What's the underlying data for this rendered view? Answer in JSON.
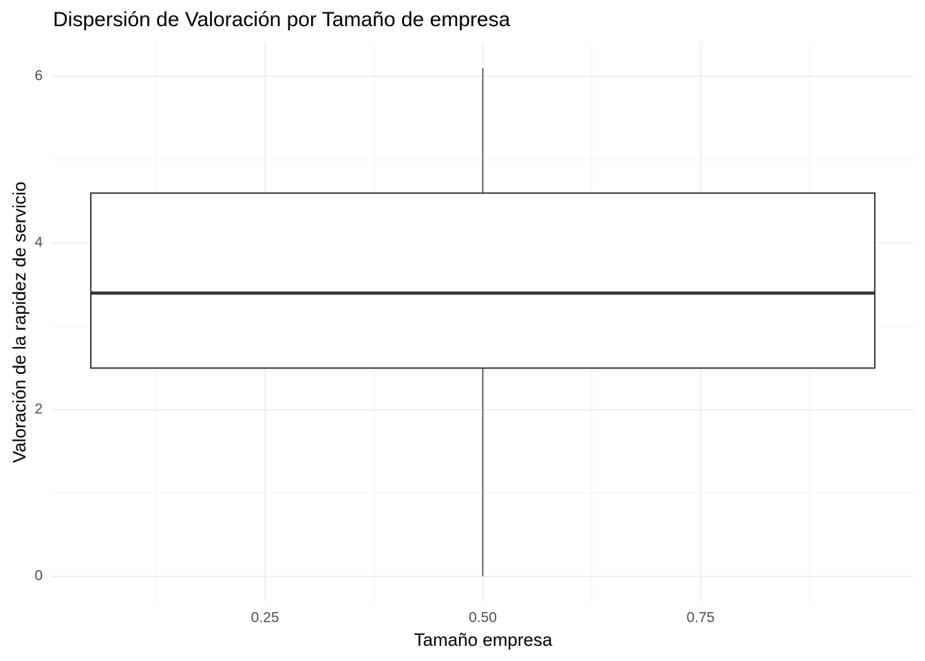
{
  "chart_data": {
    "type": "boxplot",
    "title": "Dispersión de Valoración por Tamaño de empresa",
    "x_label": "Tamaño empresa",
    "y_label": "Valoración de la rapidez de servicio",
    "boxes": [
      {
        "x": 0.5,
        "width": 0.9,
        "min": 0,
        "q1": 2.5,
        "median": 3.4,
        "q3": 4.6,
        "max": 6.1
      }
    ],
    "box_fill": "#ffffff",
    "box_stroke": "#333333",
    "xlim": [
      0.005,
      0.995
    ],
    "xticks": [
      {
        "value": 0.25,
        "label": "0.25"
      },
      {
        "value": 0.5,
        "label": "0.50"
      },
      {
        "value": 0.75,
        "label": "0.75"
      }
    ],
    "xminor": [
      0.125,
      0.375,
      0.625,
      0.875
    ],
    "ylim": [
      -0.305,
      6.405
    ],
    "yticks": [
      0,
      2,
      4,
      6
    ],
    "yminor": [
      1,
      3,
      5
    ],
    "grid": true
  }
}
